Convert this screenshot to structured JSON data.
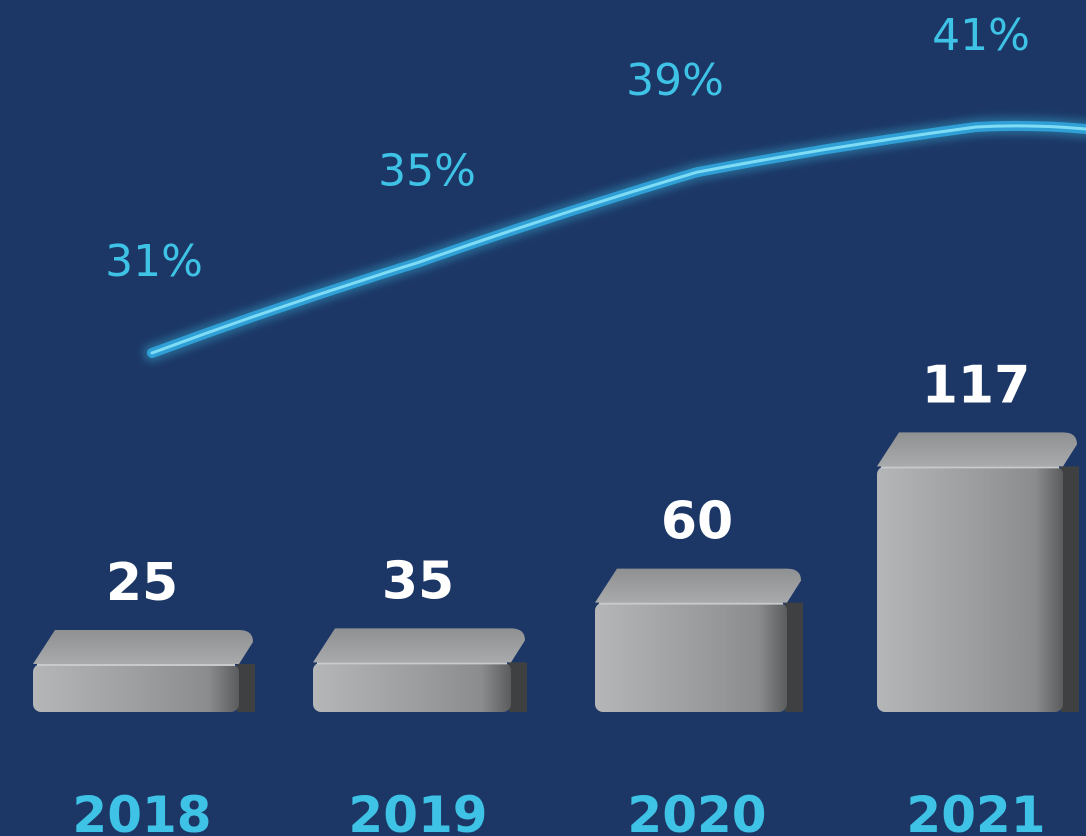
{
  "chart_data": {
    "type": "bar",
    "categories": [
      "2018",
      "2019",
      "2020",
      "2021"
    ],
    "series": [
      {
        "values": [
          25,
          35,
          60,
          117
        ],
        "colors": {
          "bar": "#9a9c9e"
        }
      },
      {
        "type": "line",
        "values": [
          31,
          35,
          39,
          41
        ],
        "value_suffix": "%",
        "colors": {
          "line": "#3ec3e6"
        }
      }
    ],
    "title": "",
    "xlabel": "",
    "ylabel": "",
    "grid": false,
    "legend": "none"
  },
  "colors": {
    "background": "#1c3766",
    "accent": "#3ec3e6",
    "value_text": "#ffffff"
  }
}
